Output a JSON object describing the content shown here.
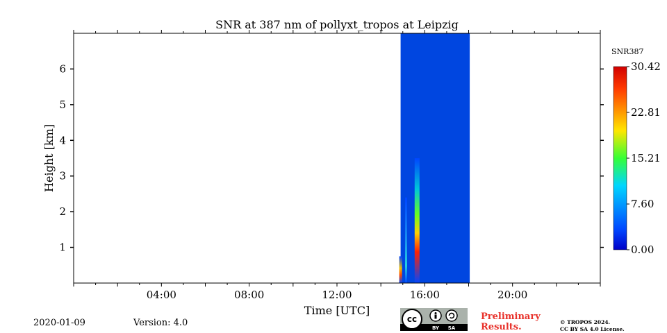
{
  "chart_data": {
    "type": "heatmap",
    "title": "SNR at 387 nm of pollyxt_tropos at Leipzig",
    "xlabel": "Time [UTC]",
    "ylabel": "Height [km]",
    "xlim_hours": [
      0,
      24
    ],
    "ylim_km": [
      0,
      7
    ],
    "x_tick_labels": [
      "04:00",
      "08:00",
      "12:00",
      "16:00",
      "20:00"
    ],
    "x_tick_hours": [
      4,
      8,
      12,
      16,
      20
    ],
    "y_tick_labels": [
      "1",
      "2",
      "3",
      "4",
      "5",
      "6"
    ],
    "y_tick_values": [
      1,
      2,
      3,
      4,
      5,
      6
    ],
    "data_window_hours": [
      14.9,
      18.05
    ],
    "background_value": 0.0,
    "columns": [
      {
        "hour": 14.9,
        "top_km": 0.75,
        "peak": 26,
        "peak_km": 0.35
      },
      {
        "hour": 15.15,
        "top_km": 2.4,
        "peak": 9,
        "peak_km": 0.5
      },
      {
        "hour": 15.65,
        "top_km": 3.5,
        "peak": 30.42,
        "peak_km": 0.45
      }
    ],
    "colorbar": {
      "label": "SNR387",
      "min": 0.0,
      "max": 30.42,
      "tick_labels": [
        "30.42",
        "22.81",
        "15.21",
        "7.60",
        "0.00"
      ],
      "tick_values": [
        30.42,
        22.81,
        15.21,
        7.6,
        0.0
      ]
    }
  },
  "footer": {
    "date": "2020-01-09",
    "version": "Version: 4.0",
    "preliminary_line1": "Preliminary",
    "preliminary_line2": "Results.",
    "copyright_line1": "© TROPOS 2024.",
    "copyright_line2": "CC BY SA 4.0 License.",
    "license_badge": {
      "cc": "cc",
      "by": "BY",
      "sa": "SA"
    }
  }
}
